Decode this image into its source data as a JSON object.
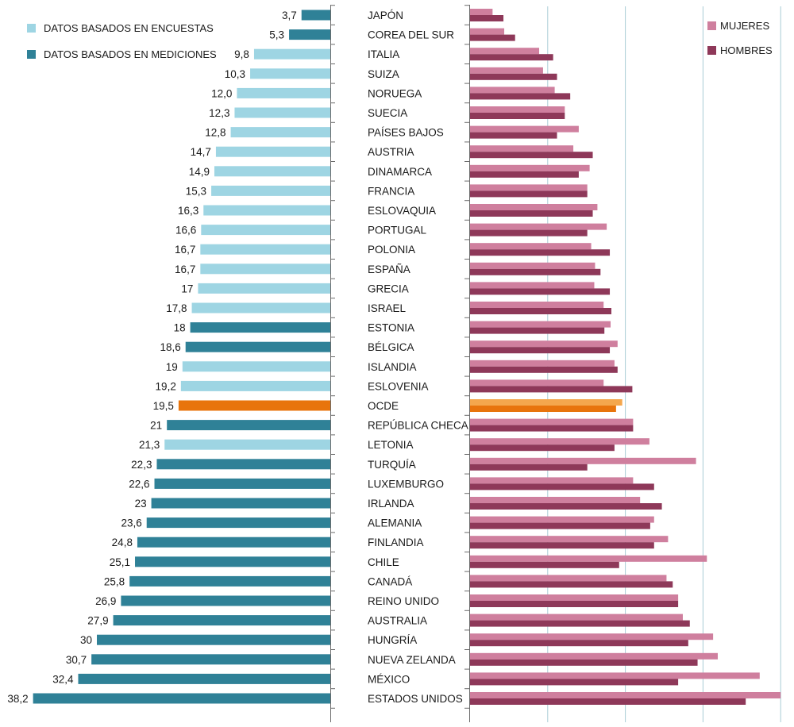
{
  "colors": {
    "survey": "#9ed5e3",
    "measured": "#2f8197",
    "oecd": "#e8740c",
    "women": "#cf7f9e",
    "men": "#8e3859",
    "oecd_women": "#f4a74d",
    "oecd_men": "#e8740c",
    "axis": "#6a6a6a",
    "grid": "#a9ccd6"
  },
  "legend_left": [
    {
      "label": "DATOS BASADOS EN ENCUESTAS",
      "color_key": "survey"
    },
    {
      "label": "DATOS BASADOS EN MEDICIONES",
      "color_key": "measured"
    }
  ],
  "legend_right": [
    {
      "label": "MUJERES",
      "color_key": "women"
    },
    {
      "label": "HOMBRES",
      "color_key": "men"
    }
  ],
  "chart_data": [
    {
      "type": "bar",
      "orientation": "horizontal",
      "direction": "leftward",
      "title": "",
      "xlim": [
        0,
        40
      ],
      "categories": [
        "JAPÓN",
        "COREA DEL SUR",
        "ITALIA",
        "SUIZA",
        "NORUEGA",
        "SUECIA",
        "PAÍSES BAJOS",
        "AUSTRIA",
        "DINAMARCA",
        "FRANCIA",
        "ESLOVAQUIA",
        "PORTUGAL",
        "POLONIA",
        "ESPAÑA",
        "GRECIA",
        "ISRAEL",
        "ESTONIA",
        "BÉLGICA",
        "ISLANDIA",
        "ESLOVENIA",
        "OCDE",
        "REPÚBLICA CHECA",
        "LETONIA",
        "TURQUÍA",
        "LUXEMBURGO",
        "IRLANDA",
        "ALEMANIA",
        "FINLANDIA",
        "CHILE",
        "CANADÁ",
        "REINO UNIDO",
        "AUSTRALIA",
        "HUNGRÍA",
        "NUEVA ZELANDA",
        "MÉXICO",
        "ESTADOS UNIDOS"
      ],
      "values": [
        3.7,
        5.3,
        9.8,
        10.3,
        12.0,
        12.3,
        12.8,
        14.7,
        14.9,
        15.3,
        16.3,
        16.6,
        16.7,
        16.7,
        17,
        17.8,
        18,
        18.6,
        19,
        19.2,
        19.5,
        21,
        21.3,
        22.3,
        22.6,
        23,
        23.6,
        24.8,
        25.1,
        25.8,
        26.9,
        27.9,
        30,
        30.7,
        32.4,
        38.2
      ],
      "value_labels": [
        "3,7",
        "5,3",
        "9,8",
        "10,3",
        "12,0",
        "12,3",
        "12,8",
        "14,7",
        "14,9",
        "15,3",
        "16,3",
        "16,6",
        "16,7",
        "16,7",
        "17",
        "17,8",
        "18",
        "18,6",
        "19",
        "19,2",
        "19,5",
        "21",
        "21,3",
        "22,3",
        "22,6",
        "23",
        "23,6",
        "24,8",
        "25,1",
        "25,8",
        "26,9",
        "27,9",
        "30",
        "30,7",
        "32,4",
        "38,2"
      ],
      "data_type": [
        "measured",
        "measured",
        "survey",
        "survey",
        "survey",
        "survey",
        "survey",
        "survey",
        "survey",
        "survey",
        "survey",
        "survey",
        "survey",
        "survey",
        "survey",
        "survey",
        "measured",
        "measured",
        "survey",
        "survey",
        "oecd",
        "measured",
        "survey",
        "measured",
        "measured",
        "measured",
        "measured",
        "measured",
        "measured",
        "measured",
        "measured",
        "measured",
        "measured",
        "measured",
        "measured",
        "measured"
      ]
    },
    {
      "type": "bar",
      "orientation": "horizontal",
      "title": "",
      "xlim": [
        0,
        40
      ],
      "gridlines": [
        10,
        20,
        30,
        40
      ],
      "categories": [
        "JAPÓN",
        "COREA DEL SUR",
        "ITALIA",
        "SUIZA",
        "NORUEGA",
        "SUECIA",
        "PAÍSES BAJOS",
        "AUSTRIA",
        "DINAMARCA",
        "FRANCIA",
        "ESLOVAQUIA",
        "PORTUGAL",
        "POLONIA",
        "ESPAÑA",
        "GRECIA",
        "ISRAEL",
        "ESTONIA",
        "BÉLGICA",
        "ISLANDIA",
        "ESLOVENIA",
        "OCDE",
        "REPÚBLICA CHECA",
        "LETONIA",
        "TURQUÍA",
        "LUXEMBURGO",
        "IRLANDA",
        "ALEMANIA",
        "FINLANDIA",
        "CHILE",
        "CANADÁ",
        "REINO UNIDO",
        "AUSTRALIA",
        "HUNGRÍA",
        "NUEVA ZELANDA",
        "MÉXICO",
        "ESTADOS UNIDOS"
      ],
      "series": [
        {
          "name": "MUJERES",
          "values": [
            2.9,
            4.4,
            8.9,
            9.4,
            10.9,
            12.2,
            14.0,
            13.3,
            15.4,
            15.1,
            16.4,
            17.6,
            15.6,
            16.1,
            16.0,
            17.2,
            18.1,
            19.0,
            18.6,
            17.2,
            19.6,
            21.0,
            23.1,
            29.1,
            21.0,
            21.9,
            23.7,
            25.5,
            30.5,
            25.3,
            26.8,
            27.4,
            31.3,
            31.9,
            37.3,
            40.0
          ]
        },
        {
          "name": "HOMBRES",
          "values": [
            4.3,
            5.8,
            10.7,
            11.2,
            12.9,
            12.2,
            11.2,
            15.8,
            14.0,
            15.1,
            15.8,
            15.1,
            18.0,
            16.8,
            18.0,
            18.2,
            17.3,
            18.0,
            19.0,
            20.9,
            18.8,
            21.0,
            18.6,
            15.1,
            23.7,
            24.7,
            23.2,
            23.7,
            19.2,
            26.1,
            26.8,
            28.3,
            28.1,
            29.3,
            26.8,
            35.5
          ]
        }
      ]
    }
  ]
}
